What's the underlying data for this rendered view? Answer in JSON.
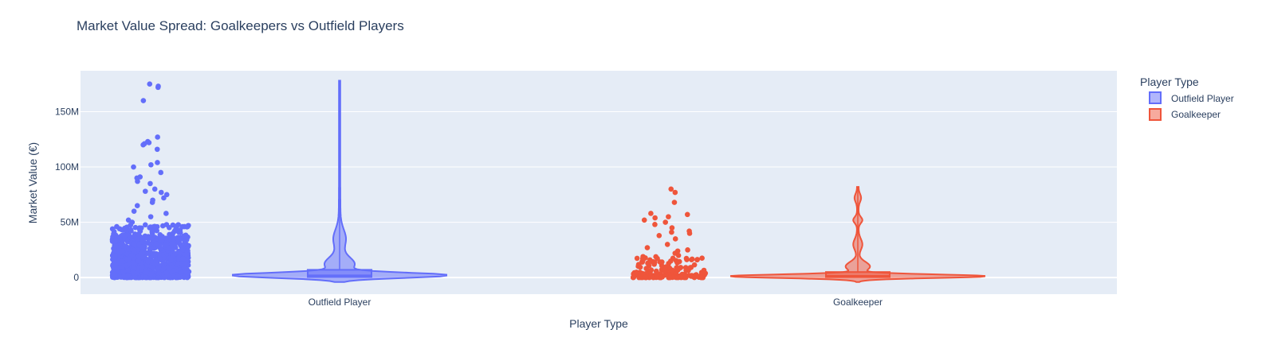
{
  "chart_data": {
    "type": "violin",
    "title": "Market Value Spread: Goalkeepers vs Outfield Players",
    "xlabel": "Player Type",
    "ylabel": "Market Value (€)",
    "categories": [
      "Outfield Player",
      "Goalkeeper"
    ],
    "y_tick_values": [
      0,
      50000000,
      100000000,
      150000000
    ],
    "y_tick_labels": [
      "0",
      "50M",
      "100M",
      "150M"
    ],
    "ylim": [
      -15000000,
      187000000
    ],
    "grid": true,
    "legend": {
      "title": "Player Type",
      "placement": "top-right",
      "entries": [
        "Outfield Player",
        "Goalkeeper"
      ]
    },
    "series": [
      {
        "name": "Outfield Player",
        "color": "#636efa",
        "fill": "rgba(99,110,250,0.5)",
        "median": 2000000,
        "q1": 500000,
        "q3": 7000000,
        "max": 178000000,
        "notable_points": [
          175000000,
          173000000,
          172000000,
          160000000,
          127000000,
          123000000,
          122000000,
          121000000,
          120000000,
          116000000,
          104000000,
          102000000,
          100000000,
          95000000,
          91000000,
          90000000,
          87000000,
          85000000,
          80000000,
          78000000,
          77000000,
          75000000,
          72000000,
          70000000,
          68000000,
          65000000,
          60000000,
          58000000,
          55000000,
          52000000,
          50000000
        ]
      },
      {
        "name": "Goalkeeper",
        "color": "#ef553b",
        "fill": "rgba(239,85,59,0.5)",
        "median": 1500000,
        "q1": 400000,
        "q3": 5000000,
        "max": 82000000,
        "notable_points": [
          80000000,
          77000000,
          68000000,
          58000000,
          57000000,
          55000000,
          54000000,
          52000000,
          50000000,
          48000000,
          45000000,
          42000000,
          41000000,
          40000000,
          38000000,
          35000000,
          30000000,
          27000000,
          25000000,
          24000000,
          22000000,
          20000000
        ]
      }
    ]
  }
}
